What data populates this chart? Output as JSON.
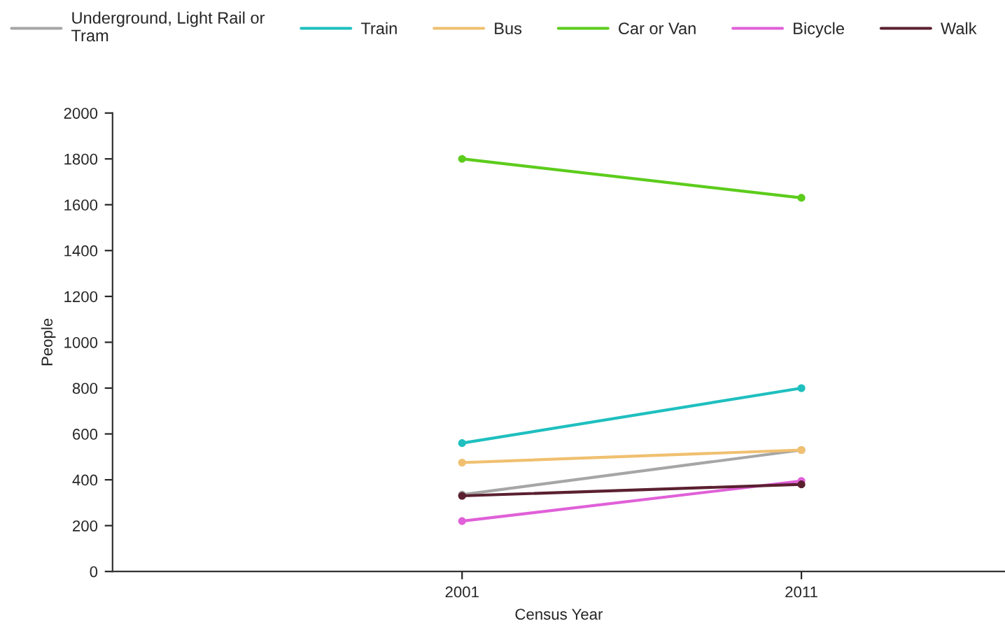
{
  "chart_data": {
    "type": "line",
    "xlabel": "Census Year",
    "ylabel": "People",
    "categories": [
      "2001",
      "2011"
    ],
    "series": [
      {
        "name": "Underground, Light Rail or\nTram",
        "color": "#a6a6a6",
        "values": [
          335,
          530
        ]
      },
      {
        "name": "Train",
        "color": "#1fbfbf",
        "values": [
          560,
          800
        ]
      },
      {
        "name": "Bus",
        "color": "#f0c070",
        "values": [
          475,
          530
        ]
      },
      {
        "name": "Car or Van",
        "color": "#5ccc1c",
        "values": [
          1800,
          1630
        ]
      },
      {
        "name": "Bicycle",
        "color": "#e060d8",
        "values": [
          220,
          395
        ]
      },
      {
        "name": "Walk",
        "color": "#5a2030",
        "values": [
          330,
          380
        ]
      }
    ],
    "ylim": [
      0,
      2000
    ],
    "yticks": [
      0,
      200,
      400,
      600,
      800,
      1000,
      1200,
      1400,
      1600,
      1800,
      2000
    ],
    "grid": false,
    "legend": "top",
    "marker": "circle",
    "line_style": "solid"
  }
}
